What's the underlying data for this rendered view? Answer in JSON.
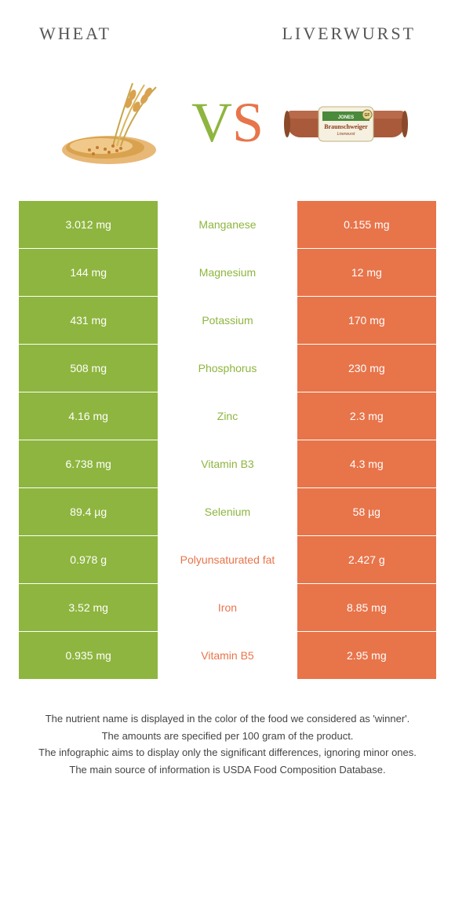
{
  "colors": {
    "left": "#8eb53f",
    "right": "#e8744a",
    "middle_bg": "#ffffff",
    "text_white": "#ffffff",
    "header_text": "#555555"
  },
  "header": {
    "left": "Wheat",
    "right": "Liverwurst"
  },
  "vs": {
    "v": "V",
    "s": "S"
  },
  "rows": [
    {
      "left": "3.012 mg",
      "label": "Manganese",
      "right": "0.155 mg",
      "winner": "left"
    },
    {
      "left": "144 mg",
      "label": "Magnesium",
      "right": "12 mg",
      "winner": "left"
    },
    {
      "left": "431 mg",
      "label": "Potassium",
      "right": "170 mg",
      "winner": "left"
    },
    {
      "left": "508 mg",
      "label": "Phosphorus",
      "right": "230 mg",
      "winner": "left"
    },
    {
      "left": "4.16 mg",
      "label": "Zinc",
      "right": "2.3 mg",
      "winner": "left"
    },
    {
      "left": "6.738 mg",
      "label": "Vitamin B3",
      "right": "4.3 mg",
      "winner": "left"
    },
    {
      "left": "89.4 µg",
      "label": "Selenium",
      "right": "58 µg",
      "winner": "left"
    },
    {
      "left": "0.978 g",
      "label": "Polyunsaturated fat",
      "right": "2.427 g",
      "winner": "right"
    },
    {
      "left": "3.52 mg",
      "label": "Iron",
      "right": "8.85 mg",
      "winner": "right"
    },
    {
      "left": "0.935 mg",
      "label": "Vitamin B5",
      "right": "2.95 mg",
      "winner": "right"
    }
  ],
  "notes": [
    "The nutrient name is displayed in the color of the food we considered as 'winner'.",
    "The amounts are specified per 100 gram of the product.",
    "The infographic aims to display only the significant differences, ignoring minor ones.",
    "The main source of information is USDA Food Composition Database."
  ]
}
